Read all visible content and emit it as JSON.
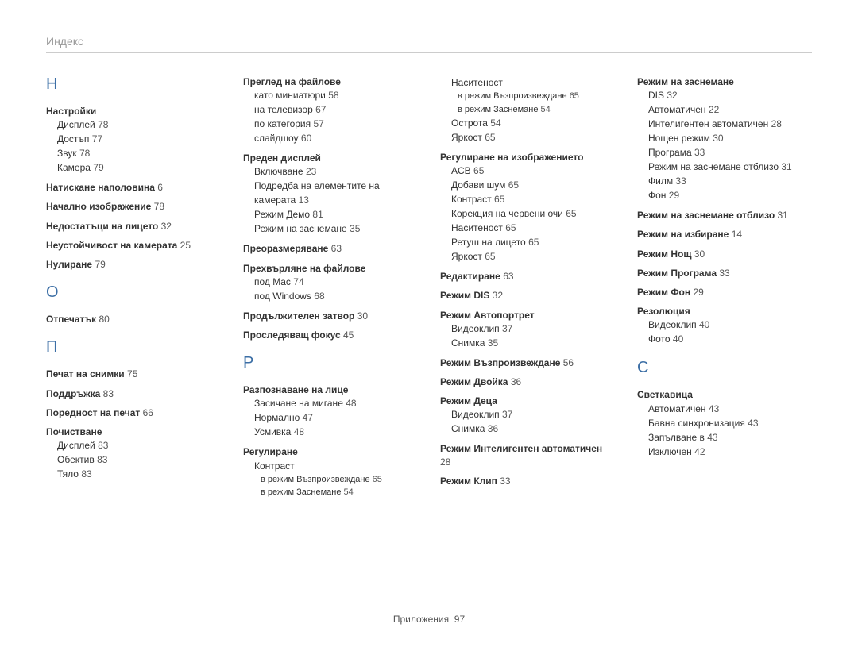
{
  "header": "Индекс",
  "footer": {
    "label": "Приложения",
    "page": "97"
  },
  "colors": {
    "letter": "#3b6ea5",
    "text": "#333333",
    "muted": "#999999",
    "page": "#555555",
    "rule": "#cccccc",
    "bg": "#ffffff"
  },
  "col1": {
    "letterH": "Н",
    "e1": {
      "main": "Настройки",
      "s1": {
        "t": "Дисплей",
        "p": "78"
      },
      "s2": {
        "t": "Достъп",
        "p": "77"
      },
      "s3": {
        "t": "Звук",
        "p": "78"
      },
      "s4": {
        "t": "Камера",
        "p": "79"
      }
    },
    "e2": {
      "t": "Натискане наполовина",
      "p": "6"
    },
    "e3": {
      "t": "Начално изображение",
      "p": "78"
    },
    "e4": {
      "t": "Недостатъци на лицето",
      "p": "32"
    },
    "e5": {
      "t": "Неустойчивост на камерата",
      "p": "25"
    },
    "e6": {
      "t": "Нулиране",
      "p": "79"
    },
    "letterO": "О",
    "e7": {
      "t": "Отпечатък",
      "p": "80"
    },
    "letterP": "П",
    "e8": {
      "t": "Печат на снимки",
      "p": "75"
    },
    "e9": {
      "t": "Поддръжка",
      "p": "83"
    },
    "e10": {
      "t": "Поредност на печат",
      "p": "66"
    },
    "e11": {
      "main": "Почистване",
      "s1": {
        "t": "Дисплей",
        "p": "83"
      },
      "s2": {
        "t": "Обектив",
        "p": "83"
      },
      "s3": {
        "t": "Тяло",
        "p": "83"
      }
    }
  },
  "col2": {
    "e1": {
      "main": "Преглед на файлове",
      "s1": {
        "t": "като миниатюри",
        "p": "58"
      },
      "s2": {
        "t": "на телевизор",
        "p": "67"
      },
      "s3": {
        "t": "по категория",
        "p": "57"
      },
      "s4": {
        "t": "слайдшоу",
        "p": "60"
      }
    },
    "e2": {
      "main": "Преден дисплей",
      "s1": {
        "t": "Включване",
        "p": "23"
      },
      "s2": {
        "t": "Подредба на елементите на камерата",
        "p": "13"
      },
      "s3": {
        "t": "Режим Демо",
        "p": "81"
      },
      "s4": {
        "t": "Режим на заснемане",
        "p": "35"
      }
    },
    "e3": {
      "t": "Преоразмеряване",
      "p": "63"
    },
    "e4": {
      "main": "Прехвърляне на файлове",
      "s1": {
        "t": "под Mac",
        "p": "74"
      },
      "s2": {
        "t": "под Windows",
        "p": "68"
      }
    },
    "e5": {
      "t": "Продължителен затвор",
      "p": "30"
    },
    "e6": {
      "t": "Проследяващ фокус",
      "p": "45"
    },
    "letterR": "Р",
    "e7": {
      "main": "Разпознаване на лице",
      "s1": {
        "t": "Засичане на мигане",
        "p": "48"
      },
      "s2": {
        "t": "Нормално",
        "p": "47"
      },
      "s3": {
        "t": "Усмивка",
        "p": "48"
      }
    },
    "e8": {
      "main": "Регулиране",
      "s1": {
        "t": "Контраст"
      },
      "ss1": {
        "t": "в режим Възпроизвеждане",
        "p": "65"
      },
      "ss2": {
        "t": "в режим Заснемане",
        "p": "54"
      }
    }
  },
  "col3": {
    "e0": {
      "s1": {
        "t": "Наситеност"
      },
      "ss1": {
        "t": "в режим Възпроизвеждане",
        "p": "65"
      },
      "ss2": {
        "t": "в режим Заснемане",
        "p": "54"
      },
      "s2": {
        "t": "Острота",
        "p": "54"
      },
      "s3": {
        "t": "Яркост",
        "p": "65"
      }
    },
    "e1": {
      "main": "Регулиране на изображението",
      "s1": {
        "t": "ACB",
        "p": "65"
      },
      "s2": {
        "t": "Добави шум",
        "p": "65"
      },
      "s3": {
        "t": "Контраст",
        "p": "65"
      },
      "s4": {
        "t": "Корекция на червени очи",
        "p": "65"
      },
      "s5": {
        "t": "Наситеност",
        "p": "65"
      },
      "s6": {
        "t": "Ретуш на лицето",
        "p": "65"
      },
      "s7": {
        "t": "Яркост",
        "p": "65"
      }
    },
    "e2": {
      "t": "Редактиране",
      "p": "63"
    },
    "e3": {
      "t": "Режим DIS",
      "p": "32"
    },
    "e4": {
      "main": "Режим Автопортрет",
      "s1": {
        "t": "Видеоклип",
        "p": "37"
      },
      "s2": {
        "t": "Снимка",
        "p": "35"
      }
    },
    "e5": {
      "t": "Режим Възпроизвеждане",
      "p": "56"
    },
    "e6": {
      "t": "Режим Двойка",
      "p": "36"
    },
    "e7": {
      "main": "Режим Деца",
      "s1": {
        "t": "Видеоклип",
        "p": "37"
      },
      "s2": {
        "t": "Снимка",
        "p": "36"
      }
    },
    "e8": {
      "t": "Режим Интелигентен автоматичен",
      "p": "28"
    },
    "e9": {
      "t": "Режим Клип",
      "p": "33"
    }
  },
  "col4": {
    "e1": {
      "main": "Режим на заснемане",
      "s1": {
        "t": "DIS",
        "p": "32"
      },
      "s2": {
        "t": "Автоматичен",
        "p": "22"
      },
      "s3": {
        "t": "Интелигентен автоматичен",
        "p": "28"
      },
      "s4": {
        "t": "Нощен режим",
        "p": "30"
      },
      "s5": {
        "t": "Програма",
        "p": "33"
      },
      "s6": {
        "t": "Режим на заснемане отблизо",
        "p": "31"
      },
      "s7": {
        "t": "Филм",
        "p": "33"
      },
      "s8": {
        "t": "Фон",
        "p": "29"
      }
    },
    "e2": {
      "t": "Режим на заснемане отблизо",
      "p": "31"
    },
    "e3": {
      "t": "Режим на избиране",
      "p": "14"
    },
    "e4": {
      "t": "Режим Нощ",
      "p": "30"
    },
    "e5": {
      "t": "Режим Програма",
      "p": "33"
    },
    "e6": {
      "t": "Режим Фон",
      "p": "29"
    },
    "e7": {
      "main": "Резолюция",
      "s1": {
        "t": "Видеоклип",
        "p": "40"
      },
      "s2": {
        "t": "Фото",
        "p": "40"
      }
    },
    "letterS": "С",
    "e8": {
      "main": "Светкавица",
      "s1": {
        "t": "Автоматичен",
        "p": "43"
      },
      "s2": {
        "t": "Бавна синхронизация",
        "p": "43"
      },
      "s3": {
        "t": "Запълване в",
        "p": "43"
      },
      "s4": {
        "t": "Изключен",
        "p": "42"
      }
    }
  }
}
